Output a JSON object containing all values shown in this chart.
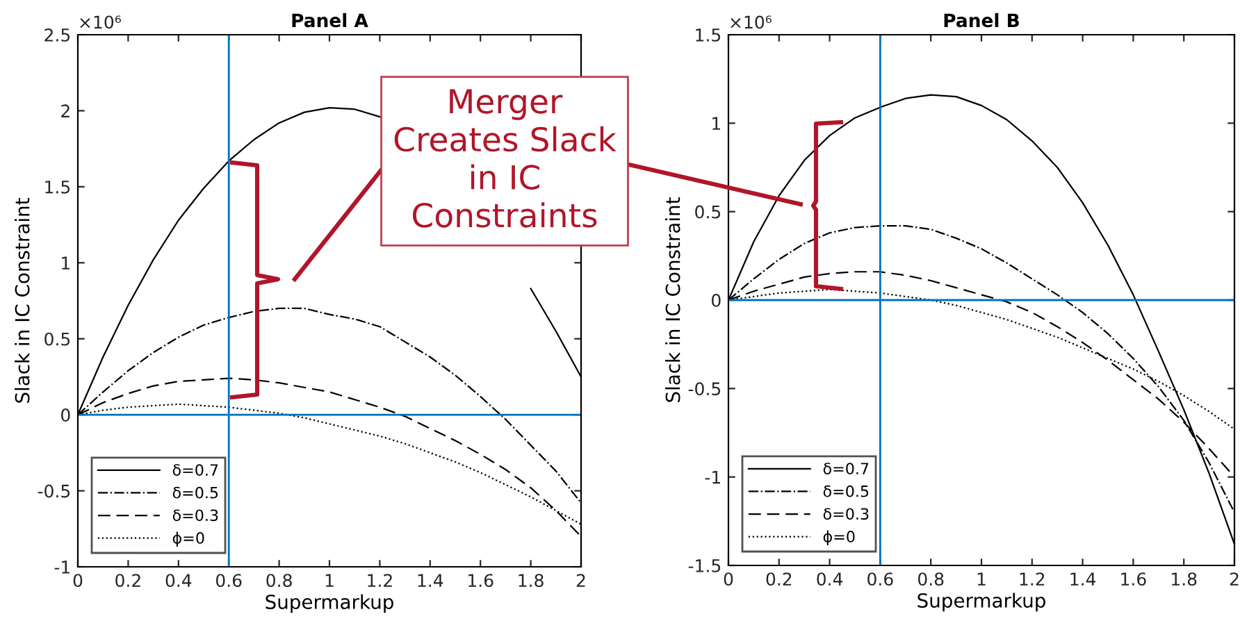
{
  "chart_data": [
    {
      "type": "line",
      "title": "Panel A",
      "xlabel": "Supermarkup",
      "ylabel": "Slack in IC Constraint",
      "x": [
        0,
        0.1,
        0.2,
        0.3,
        0.4,
        0.5,
        0.6,
        0.7,
        0.8,
        0.9,
        1.0,
        1.1,
        1.2,
        1.3,
        1.4,
        1.5,
        1.6,
        1.7,
        1.8,
        1.9,
        2.0
      ],
      "series": [
        {
          "name": "δ=0.7",
          "color": "#000000",
          "line_style": "solid",
          "values": [
            0,
            0.38,
            0.72,
            1.02,
            1.28,
            1.49,
            1.67,
            1.81,
            1.92,
            1.99,
            2.02,
            2.01,
            1.96,
            null,
            null,
            null,
            null,
            null,
            0.83,
            0.55,
            0.25
          ]
        },
        {
          "name": "δ=0.5",
          "color": "#000000",
          "line_style": "dashdot",
          "values": [
            0,
            0.15,
            0.29,
            0.41,
            0.51,
            0.59,
            0.64,
            0.68,
            0.7,
            0.7,
            0.66,
            0.63,
            0.58,
            0.48,
            0.38,
            0.26,
            0.12,
            -0.03,
            -0.2,
            -0.37,
            -0.58
          ]
        },
        {
          "name": "δ=0.3",
          "color": "#000000",
          "line_style": "dashed",
          "values": [
            0,
            0.08,
            0.14,
            0.19,
            0.22,
            0.23,
            0.24,
            0.23,
            0.21,
            0.18,
            0.15,
            0.1,
            0.05,
            -0.01,
            -0.09,
            -0.17,
            -0.26,
            -0.36,
            -0.48,
            -0.63,
            -0.8
          ]
        },
        {
          "name": "ϕ=0",
          "color": "#000000",
          "line_style": "dotted",
          "values": [
            0,
            0.03,
            0.05,
            0.06,
            0.07,
            0.06,
            0.05,
            0.03,
            0.01,
            -0.02,
            -0.06,
            -0.1,
            -0.14,
            -0.19,
            -0.25,
            -0.31,
            -0.38,
            -0.46,
            -0.54,
            -0.63,
            -0.72
          ]
        }
      ],
      "xlim": [
        0,
        2
      ],
      "xticks": [
        0,
        0.2,
        0.4,
        0.6,
        0.8,
        1,
        1.2,
        1.4,
        1.6,
        1.8,
        2
      ],
      "ylim": [
        -1,
        2.5
      ],
      "yticks": [
        -1,
        -0.5,
        0,
        0.5,
        1,
        1.5,
        2,
        2.5
      ],
      "ref_lines": [
        {
          "axis": "x",
          "value": 0.6,
          "color": "#0072bd"
        },
        {
          "axis": "y",
          "value": 0,
          "color": "#0072bd"
        }
      ],
      "legend": "bottom left",
      "grid": false,
      "annotations": [
        "×10⁶",
        "Merger\nCreates Slack\nin IC\nConstraints"
      ]
    },
    {
      "type": "line",
      "title": "Panel B",
      "xlabel": "Supermarkup",
      "ylabel": "Slack in IC Constraint",
      "x": [
        0,
        0.1,
        0.2,
        0.3,
        0.4,
        0.5,
        0.6,
        0.7,
        0.8,
        0.9,
        1.0,
        1.1,
        1.2,
        1.3,
        1.4,
        1.5,
        1.6,
        1.7,
        1.8,
        1.9,
        2.0
      ],
      "series": [
        {
          "name": "δ=0.7",
          "color": "#000000",
          "line_style": "solid",
          "values": [
            0,
            0.33,
            0.59,
            0.79,
            0.93,
            1.03,
            1.09,
            1.14,
            1.16,
            1.15,
            1.1,
            1.02,
            0.9,
            0.75,
            0.55,
            0.31,
            0.03,
            -0.29,
            -0.62,
            -0.98,
            -1.38
          ]
        },
        {
          "name": "δ=0.5",
          "color": "#000000",
          "line_style": "dashdot",
          "values": [
            0,
            0.12,
            0.23,
            0.32,
            0.38,
            0.41,
            0.42,
            0.42,
            0.4,
            0.35,
            0.29,
            0.21,
            0.12,
            0.03,
            -0.07,
            -0.19,
            -0.33,
            -0.49,
            -0.68,
            -0.92,
            -1.2
          ]
        },
        {
          "name": "δ=0.3",
          "color": "#000000",
          "line_style": "dashed",
          "values": [
            0,
            0.05,
            0.09,
            0.13,
            0.15,
            0.16,
            0.16,
            0.14,
            0.11,
            0.07,
            0.03,
            -0.01,
            -0.07,
            -0.15,
            -0.24,
            -0.34,
            -0.45,
            -0.56,
            -0.69,
            -0.84,
            -1.0
          ]
        },
        {
          "name": "ϕ=0",
          "color": "#000000",
          "line_style": "dotted",
          "values": [
            0,
            0.02,
            0.04,
            0.05,
            0.06,
            0.05,
            0.04,
            0.02,
            0.0,
            -0.03,
            -0.07,
            -0.11,
            -0.16,
            -0.21,
            -0.27,
            -0.33,
            -0.39,
            -0.46,
            -0.54,
            -0.63,
            -0.73
          ]
        }
      ],
      "xlim": [
        0,
        2
      ],
      "xticks": [
        0,
        0.2,
        0.4,
        0.6,
        0.8,
        1,
        1.2,
        1.4,
        1.6,
        1.8,
        2
      ],
      "ylim": [
        -1.5,
        1.5
      ],
      "yticks": [
        -1.5,
        -1,
        -0.5,
        0,
        0.5,
        1,
        1.5
      ],
      "ref_lines": [
        {
          "axis": "x",
          "value": 0.6,
          "color": "#0072bd"
        },
        {
          "axis": "y",
          "value": 0,
          "color": "#0072bd"
        }
      ],
      "legend": "bottom left",
      "grid": false,
      "annotations": [
        "×10⁶"
      ]
    }
  ]
}
